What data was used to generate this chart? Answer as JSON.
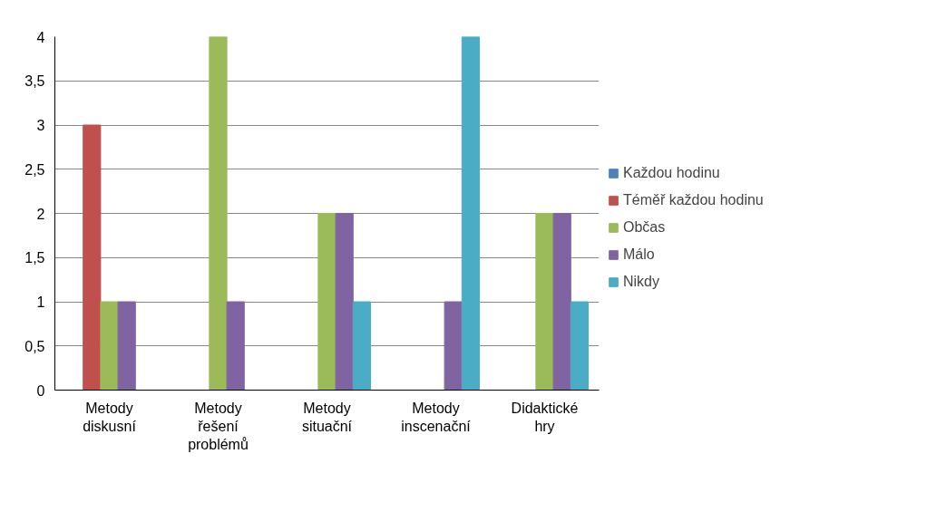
{
  "chart_data": {
    "type": "bar",
    "categories": [
      "Metody diskusní",
      "Metody řešení problémů",
      "Metody situační",
      "Metody inscenační",
      "Didaktické hry"
    ],
    "series": [
      {
        "name": "Každou hodinu",
        "color": "#4f81bd",
        "values": [
          0,
          0,
          0,
          0,
          0
        ]
      },
      {
        "name": "Téměř každou hodinu",
        "color": "#c0504d",
        "values": [
          3,
          0,
          0,
          0,
          0
        ]
      },
      {
        "name": "Občas",
        "color": "#9bbb59",
        "values": [
          1,
          4,
          2,
          0,
          2
        ]
      },
      {
        "name": "Málo",
        "color": "#8064a2",
        "values": [
          1,
          1,
          2,
          1,
          2
        ]
      },
      {
        "name": "Nikdy",
        "color": "#4bacc6",
        "values": [
          0,
          0,
          1,
          4,
          1
        ]
      }
    ],
    "ylim": [
      0,
      4
    ],
    "yticks": [
      0,
      {
        "value": 0.5,
        "label": "0,5"
      },
      1,
      {
        "value": 1.5,
        "label": "1,5"
      },
      2,
      {
        "value": 2.5,
        "label": "2,5"
      },
      3,
      {
        "value": 3.5,
        "label": "3,5"
      },
      4
    ],
    "grid": "y",
    "legend": "right"
  }
}
